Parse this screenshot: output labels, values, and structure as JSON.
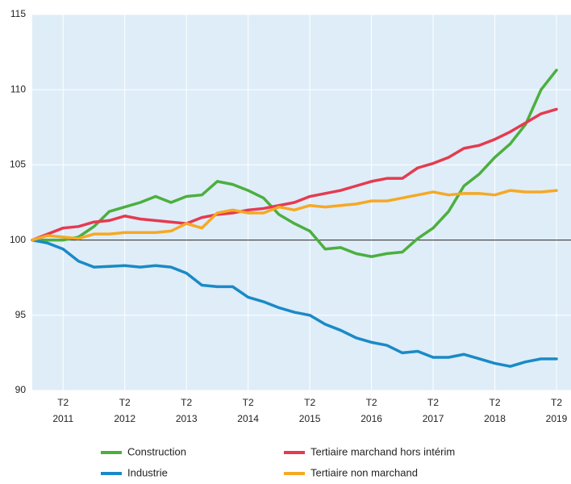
{
  "chart_data": {
    "type": "line",
    "categories": [
      null,
      null,
      {
        "quarter": "T2",
        "year": "2011"
      },
      null,
      null,
      null,
      {
        "quarter": "T2",
        "year": "2012"
      },
      null,
      null,
      null,
      {
        "quarter": "T2",
        "year": "2013"
      },
      null,
      null,
      null,
      {
        "quarter": "T2",
        "year": "2014"
      },
      null,
      null,
      null,
      {
        "quarter": "T2",
        "year": "2015"
      },
      null,
      null,
      null,
      {
        "quarter": "T2",
        "year": "2016"
      },
      null,
      null,
      null,
      {
        "quarter": "T2",
        "year": "2017"
      },
      null,
      null,
      null,
      {
        "quarter": "T2",
        "year": "2018"
      },
      null,
      null,
      null,
      {
        "quarter": "T2",
        "year": "2019"
      }
    ],
    "series": [
      {
        "name": "Construction",
        "color": "#4caf3e",
        "values": [
          100,
          100.0,
          100.0,
          100.2,
          100.9,
          101.9,
          102.2,
          102.5,
          102.9,
          102.5,
          102.9,
          103.0,
          103.9,
          103.7,
          103.3,
          102.8,
          101.7,
          101.1,
          100.6,
          99.4,
          99.5,
          99.1,
          98.9,
          99.1,
          99.2,
          100.1,
          100.8,
          101.9,
          103.6,
          104.4,
          105.5,
          106.4,
          107.7,
          110.0,
          111.3
        ]
      },
      {
        "name": "Tertiaire marchand hors intérim",
        "color": "#e63a4f",
        "values": [
          100,
          100.4,
          100.8,
          100.9,
          101.2,
          101.3,
          101.6,
          101.4,
          101.3,
          101.2,
          101.1,
          101.5,
          101.7,
          101.8,
          102.0,
          102.1,
          102.3,
          102.5,
          102.9,
          103.1,
          103.3,
          103.6,
          103.9,
          104.1,
          104.1,
          104.8,
          105.1,
          105.5,
          106.1,
          106.3,
          106.7,
          107.2,
          107.8,
          108.4,
          108.7
        ]
      },
      {
        "name": "Industrie",
        "color": "#1a8ac6",
        "values": [
          100,
          99.8,
          99.4,
          98.6,
          98.2,
          98.25,
          98.3,
          98.2,
          98.3,
          98.2,
          97.8,
          97.0,
          96.9,
          96.9,
          96.2,
          95.9,
          95.5,
          95.2,
          95.0,
          94.4,
          94.0,
          93.5,
          93.2,
          93.0,
          92.5,
          92.6,
          92.2,
          92.2,
          92.4,
          92.1,
          91.8,
          91.6,
          91.9,
          92.1,
          92.1
        ]
      },
      {
        "name": "Tertiaire non marchand",
        "color": "#f7a823",
        "values": [
          100,
          100.3,
          100.2,
          100.1,
          100.4,
          100.4,
          100.5,
          100.5,
          100.5,
          100.6,
          101.1,
          100.8,
          101.8,
          102.0,
          101.8,
          101.8,
          102.2,
          102.0,
          102.3,
          102.2,
          102.3,
          102.4,
          102.6,
          102.6,
          102.8,
          103.0,
          103.2,
          103.0,
          103.1,
          103.1,
          103.0,
          103.3,
          103.2,
          103.2,
          103.3
        ]
      }
    ],
    "ylim": [
      90,
      115
    ],
    "yticks": [
      90,
      95,
      100,
      105,
      110,
      115
    ],
    "reference_line": 100,
    "grid": true
  }
}
